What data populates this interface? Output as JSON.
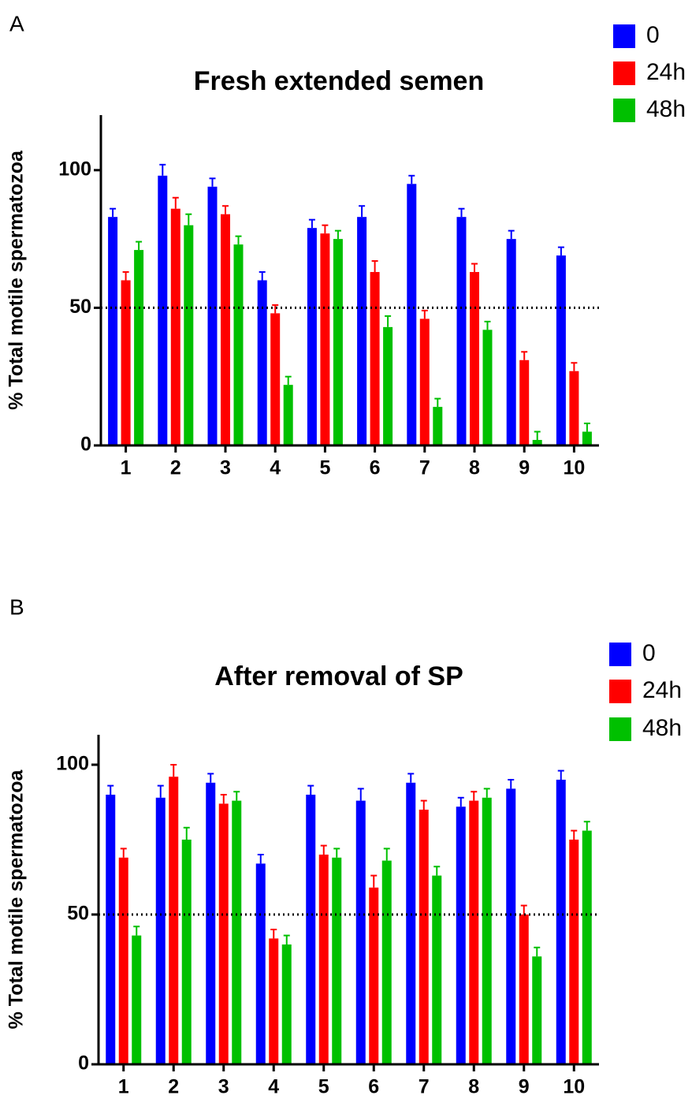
{
  "chart_data": [
    {
      "type": "bar",
      "panel": "A",
      "title": "Fresh extended semen",
      "y_label": "% Total motile spermatozoa",
      "categories": [
        "1",
        "2",
        "3",
        "4",
        "5",
        "6",
        "7",
        "8",
        "9",
        "10"
      ],
      "series": [
        {
          "name": "0",
          "color": "#0000ff",
          "values": [
            83,
            98,
            94,
            60,
            79,
            83,
            95,
            83,
            75,
            69
          ],
          "errors": [
            3,
            4,
            3,
            3,
            3,
            4,
            3,
            3,
            3,
            3
          ]
        },
        {
          "name": "24h",
          "color": "#ff0000",
          "values": [
            60,
            86,
            84,
            48,
            77,
            63,
            46,
            63,
            31,
            27
          ],
          "errors": [
            3,
            4,
            3,
            3,
            3,
            4,
            3,
            3,
            3,
            3
          ]
        },
        {
          "name": "48h",
          "color": "#00c000",
          "values": [
            71,
            80,
            73,
            22,
            75,
            43,
            14,
            42,
            2,
            5
          ],
          "errors": [
            3,
            4,
            3,
            3,
            3,
            4,
            3,
            3,
            3,
            3
          ]
        }
      ],
      "ylim": [
        0,
        120
      ],
      "yticks": [
        0,
        50,
        100
      ],
      "reference_line": 50
    },
    {
      "type": "bar",
      "panel": "B",
      "title": "After removal of SP",
      "y_label": "% Total motile spermatozoa",
      "categories": [
        "1",
        "2",
        "3",
        "4",
        "5",
        "6",
        "7",
        "8",
        "9",
        "10"
      ],
      "series": [
        {
          "name": "0",
          "color": "#0000ff",
          "values": [
            90,
            89,
            94,
            67,
            90,
            88,
            94,
            86,
            92,
            95
          ],
          "errors": [
            3,
            4,
            3,
            3,
            3,
            4,
            3,
            3,
            3,
            3
          ]
        },
        {
          "name": "24h",
          "color": "#ff0000",
          "values": [
            69,
            96,
            87,
            42,
            70,
            59,
            85,
            88,
            50,
            75
          ],
          "errors": [
            3,
            4,
            3,
            3,
            3,
            4,
            3,
            3,
            3,
            3
          ]
        },
        {
          "name": "48h",
          "color": "#00c000",
          "values": [
            43,
            75,
            88,
            40,
            69,
            68,
            63,
            89,
            36,
            78
          ],
          "errors": [
            3,
            4,
            3,
            3,
            3,
            4,
            3,
            3,
            3,
            3
          ]
        }
      ],
      "ylim": [
        0,
        110
      ],
      "yticks": [
        0,
        50,
        100
      ],
      "reference_line": 50
    }
  ]
}
